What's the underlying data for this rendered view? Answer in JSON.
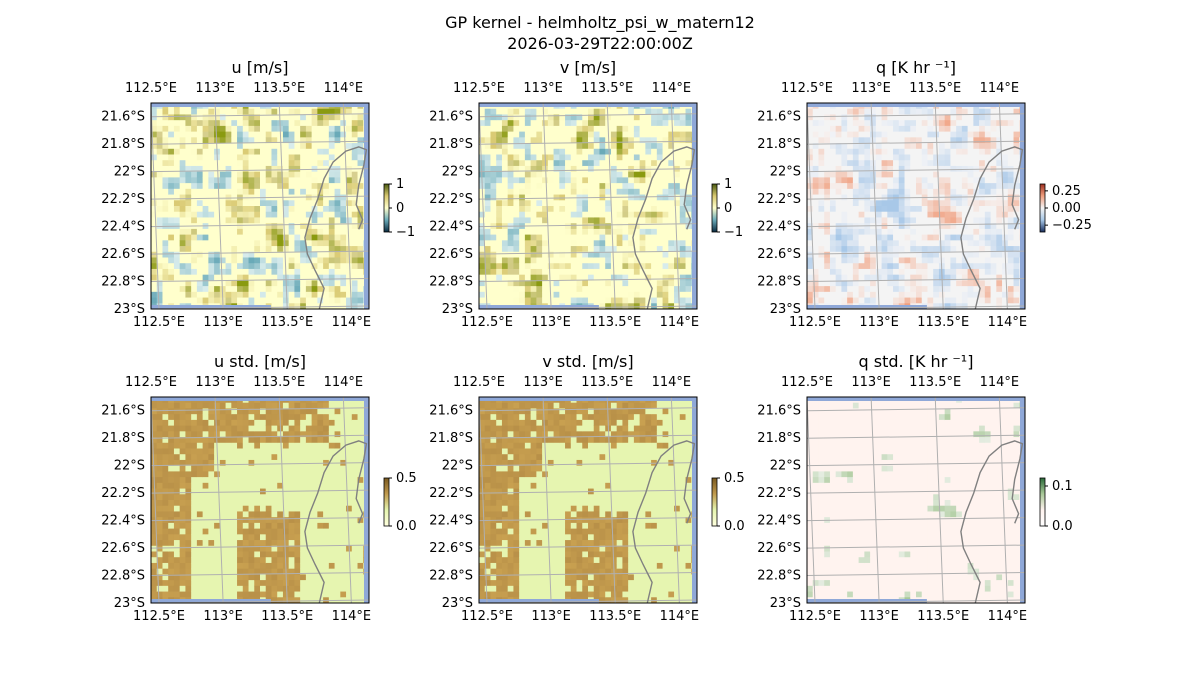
{
  "figure": {
    "title_line1": "GP kernel - helmholtz_psi_w_matern12",
    "title_line2": "2026-03-29T22:00:00Z"
  },
  "colors": {
    "land": "#ffffcc",
    "ocean_edge": "#8fa8d8",
    "coast": "#808080",
    "grid": "#b0b0b0",
    "std_high": "#c09a4e",
    "std_low": "#e6f5b0",
    "q_pos": "#f0a080",
    "q_neg": "#a8c8e8",
    "q_std": "#a8c898",
    "q_std_bg": "#fff3ef"
  },
  "chart_data": [
    {
      "type": "heatmap",
      "title": "u [m/s]",
      "colormap": "diverging-blue-yellow-olive",
      "xticks": [
        "112.5°E",
        "113°E",
        "113.5°E",
        "114°E"
      ],
      "yticks": [
        "21.6°S",
        "21.8°S",
        "22°S",
        "22.2°S",
        "22.4°S",
        "22.6°S",
        "22.8°S",
        "23°S"
      ],
      "xlim": [
        112.5,
        114.2
      ],
      "ylim": [
        -23.0,
        -21.5
      ],
      "grid": true,
      "colorbar": {
        "ticks": [
          "1",
          "0",
          "−1"
        ],
        "range": [
          -1,
          1
        ]
      }
    },
    {
      "type": "heatmap",
      "title": "v [m/s]",
      "colormap": "diverging-blue-yellow-olive",
      "xticks": [
        "112.5°E",
        "113°E",
        "113.5°E",
        "114°E"
      ],
      "yticks": [
        "21.6°S",
        "21.8°S",
        "22°S",
        "22.2°S",
        "22.4°S",
        "22.6°S",
        "22.8°S",
        "23°S"
      ],
      "xlim": [
        112.5,
        114.2
      ],
      "ylim": [
        -23.0,
        -21.5
      ],
      "grid": true,
      "colorbar": {
        "ticks": [
          "1",
          "0",
          "−1"
        ],
        "range": [
          -1,
          1
        ]
      }
    },
    {
      "type": "heatmap",
      "title": "q [K hr ⁻¹]",
      "colormap": "diverging-blue-red",
      "xticks": [
        "112.5°E",
        "113°E",
        "113.5°E",
        "114°E"
      ],
      "yticks": [
        "21.6°S",
        "21.8°S",
        "22°S",
        "22.2°S",
        "22.4°S",
        "22.6°S",
        "22.8°S",
        "23°S"
      ],
      "xlim": [
        112.5,
        114.2
      ],
      "ylim": [
        -23.0,
        -21.5
      ],
      "grid": true,
      "colorbar": {
        "ticks": [
          "0.25",
          "0.00",
          "−0.25"
        ],
        "range": [
          -0.35,
          0.35
        ]
      }
    },
    {
      "type": "heatmap",
      "title": "u std. [m/s]",
      "colormap": "sequential-yellow-brown",
      "xticks": [
        "112.5°E",
        "113°E",
        "113.5°E",
        "114°E"
      ],
      "yticks": [
        "21.6°S",
        "21.8°S",
        "22°S",
        "22.2°S",
        "22.4°S",
        "22.6°S",
        "22.8°S",
        "23°S"
      ],
      "xlim": [
        112.5,
        114.2
      ],
      "ylim": [
        -23.0,
        -21.5
      ],
      "grid": true,
      "colorbar": {
        "ticks": [
          "0.5",
          "0.0"
        ],
        "range": [
          0,
          0.5
        ]
      }
    },
    {
      "type": "heatmap",
      "title": "v std. [m/s]",
      "colormap": "sequential-yellow-brown",
      "xticks": [
        "112.5°E",
        "113°E",
        "113.5°E",
        "114°E"
      ],
      "yticks": [
        "21.6°S",
        "21.8°S",
        "22°S",
        "22.2°S",
        "22.4°S",
        "22.6°S",
        "22.8°S",
        "23°S"
      ],
      "xlim": [
        112.5,
        114.2
      ],
      "ylim": [
        -23.0,
        -21.5
      ],
      "grid": true,
      "colorbar": {
        "ticks": [
          "0.5",
          "0.0"
        ],
        "range": [
          0,
          0.5
        ]
      }
    },
    {
      "type": "heatmap",
      "title": "q std. [K hr ⁻¹]",
      "colormap": "sequential-pink-green",
      "xticks": [
        "112.5°E",
        "113°E",
        "113.5°E",
        "114°E"
      ],
      "yticks": [
        "21.6°S",
        "21.8°S",
        "22°S",
        "22.2°S",
        "22.4°S",
        "22.6°S",
        "22.8°S",
        "23°S"
      ],
      "xlim": [
        112.5,
        114.2
      ],
      "ylim": [
        -23.0,
        -21.5
      ],
      "grid": true,
      "colorbar": {
        "ticks": [
          "0.1",
          "0.0"
        ],
        "range": [
          0,
          0.12
        ]
      }
    }
  ]
}
